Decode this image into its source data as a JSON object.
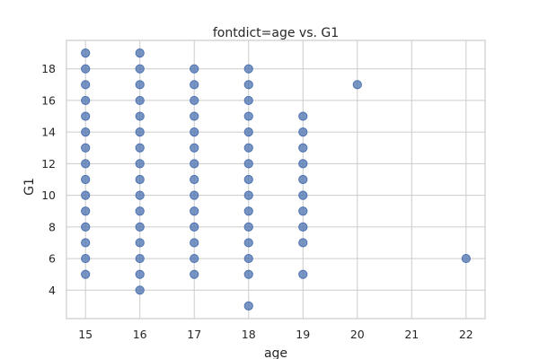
{
  "chart_data": {
    "type": "scatter",
    "title": "fontdict=age vs. G1",
    "xlabel": "age",
    "ylabel": "G1",
    "xlim": [
      14.65,
      22.35
    ],
    "ylim": [
      2.2,
      19.8
    ],
    "xticks": [
      15,
      16,
      17,
      18,
      19,
      20,
      21,
      22
    ],
    "yticks": [
      4,
      6,
      8,
      10,
      12,
      14,
      16,
      18
    ],
    "grid": true,
    "point_color": "#4c72b0",
    "points": [
      [
        15,
        5
      ],
      [
        15,
        6
      ],
      [
        15,
        7
      ],
      [
        15,
        8
      ],
      [
        15,
        9
      ],
      [
        15,
        10
      ],
      [
        15,
        11
      ],
      [
        15,
        12
      ],
      [
        15,
        13
      ],
      [
        15,
        14
      ],
      [
        15,
        15
      ],
      [
        15,
        16
      ],
      [
        15,
        17
      ],
      [
        15,
        18
      ],
      [
        15,
        19
      ],
      [
        16,
        4
      ],
      [
        16,
        5
      ],
      [
        16,
        6
      ],
      [
        16,
        7
      ],
      [
        16,
        8
      ],
      [
        16,
        9
      ],
      [
        16,
        10
      ],
      [
        16,
        11
      ],
      [
        16,
        12
      ],
      [
        16,
        13
      ],
      [
        16,
        14
      ],
      [
        16,
        15
      ],
      [
        16,
        16
      ],
      [
        16,
        17
      ],
      [
        16,
        18
      ],
      [
        16,
        19
      ],
      [
        17,
        5
      ],
      [
        17,
        6
      ],
      [
        17,
        7
      ],
      [
        17,
        8
      ],
      [
        17,
        9
      ],
      [
        17,
        10
      ],
      [
        17,
        11
      ],
      [
        17,
        12
      ],
      [
        17,
        13
      ],
      [
        17,
        14
      ],
      [
        17,
        15
      ],
      [
        17,
        16
      ],
      [
        17,
        17
      ],
      [
        17,
        18
      ],
      [
        18,
        3
      ],
      [
        18,
        5
      ],
      [
        18,
        6
      ],
      [
        18,
        7
      ],
      [
        18,
        8
      ],
      [
        18,
        9
      ],
      [
        18,
        10
      ],
      [
        18,
        11
      ],
      [
        18,
        12
      ],
      [
        18,
        13
      ],
      [
        18,
        14
      ],
      [
        18,
        15
      ],
      [
        18,
        16
      ],
      [
        18,
        17
      ],
      [
        18,
        18
      ],
      [
        19,
        5
      ],
      [
        19,
        7
      ],
      [
        19,
        8
      ],
      [
        19,
        9
      ],
      [
        19,
        10
      ],
      [
        19,
        11
      ],
      [
        19,
        12
      ],
      [
        19,
        13
      ],
      [
        19,
        14
      ],
      [
        19,
        15
      ],
      [
        20,
        17
      ],
      [
        22,
        6
      ]
    ]
  }
}
